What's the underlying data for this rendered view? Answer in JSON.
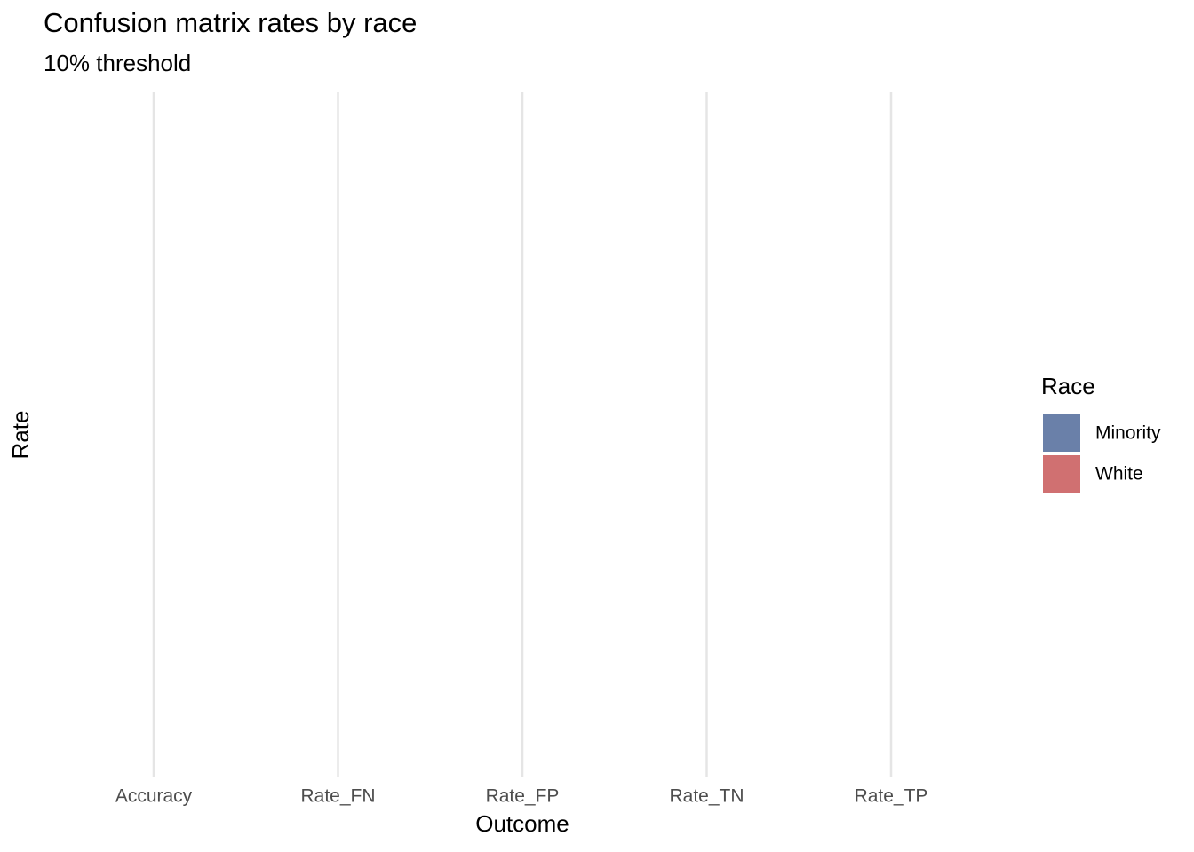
{
  "chart_data": {
    "type": "bar",
    "title": "Confusion matrix rates by race",
    "subtitle": "10% threshold",
    "x_label": "Outcome",
    "y_label": "Rate",
    "categories": [
      "Accuracy",
      "Rate_FN",
      "Rate_FP",
      "Rate_TN",
      "Rate_TP"
    ],
    "legend_title": "Race",
    "series": [
      {
        "name": "Minority",
        "color": "#6a80a9",
        "values": [
          null,
          null,
          null,
          null,
          null
        ]
      },
      {
        "name": "White",
        "color": "#d07071",
        "values": [
          null,
          null,
          null,
          null,
          null
        ]
      }
    ],
    "grid": true
  }
}
